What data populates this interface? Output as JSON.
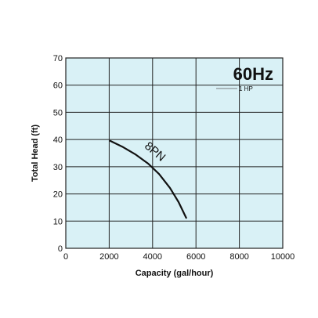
{
  "chart_data": {
    "type": "line",
    "xlabel": "Capacity (gal/hour)",
    "ylabel": "Total Head (ft)",
    "xlim": [
      0,
      10000
    ],
    "ylim": [
      0,
      70
    ],
    "x_ticks": [
      0,
      2000,
      4000,
      6000,
      8000,
      10000
    ],
    "y_ticks": [
      0,
      10,
      20,
      30,
      40,
      50,
      60,
      70
    ],
    "grid": true,
    "annotations": {
      "frequency": "60Hz",
      "power": "1 HP"
    },
    "series": [
      {
        "name": "8PN",
        "x": [
          2050,
          2600,
          3200,
          3800,
          4300,
          4800,
          5200,
          5550
        ],
        "y": [
          39.5,
          37.4,
          34.6,
          31.1,
          27.3,
          22.2,
          17.0,
          11.2
        ]
      }
    ],
    "colors": {
      "plot_background": "#d9f1f6",
      "grid": "#222222",
      "line": "#111111"
    }
  }
}
